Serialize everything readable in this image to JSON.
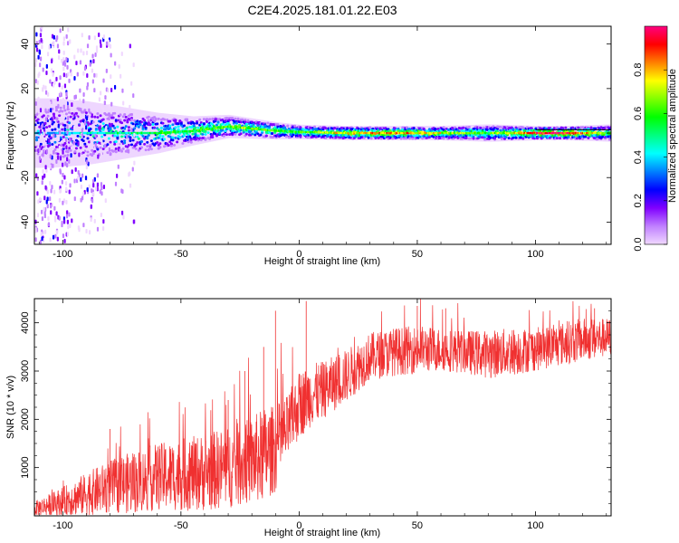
{
  "title": "C2E4.2025.181.01.22.E03",
  "chart_data": [
    {
      "type": "heatmap",
      "xlabel": "Height of straight line (km)",
      "ylabel": "Frequency (Hz)",
      "xlim": [
        -112,
        132
      ],
      "ylim": [
        -50,
        48
      ],
      "xticks": [
        -100,
        -50,
        0,
        50,
        100
      ],
      "yticks": [
        -40,
        -20,
        0,
        20,
        40
      ],
      "colorbar": {
        "label": "Normalized spectral amplitude",
        "range": [
          0,
          1
        ],
        "ticks": [
          "0.0",
          "0.2",
          "0.4",
          "0.6",
          "0.8"
        ],
        "colors": [
          "#f0d8ff",
          "#c080ff",
          "#8000ff",
          "#0000ff",
          "#0080ff",
          "#00ffff",
          "#00ff80",
          "#00ff00",
          "#80ff00",
          "#ffff00",
          "#ff8000",
          "#ff0000",
          "#ff0080"
        ]
      },
      "ridge_line": {
        "x": [
          100,
          132
        ],
        "y": [
          1.5,
          1.5
        ]
      },
      "ridge": [
        {
          "x": -105,
          "center": 0,
          "halfwidth": 12,
          "amp": 0.35
        },
        {
          "x": -90,
          "center": 0,
          "halfwidth": 11,
          "amp": 0.45
        },
        {
          "x": -75,
          "center": 0,
          "halfwidth": 9,
          "amp": 0.5
        },
        {
          "x": -60,
          "center": 0,
          "halfwidth": 7,
          "amp": 0.55
        },
        {
          "x": -45,
          "center": 1,
          "halfwidth": 5,
          "amp": 0.6
        },
        {
          "x": -30,
          "center": 3,
          "halfwidth": 4,
          "amp": 0.62
        },
        {
          "x": -20,
          "center": 2,
          "halfwidth": 3.5,
          "amp": 0.65
        },
        {
          "x": -10,
          "center": 1,
          "halfwidth": 3,
          "amp": 0.6
        },
        {
          "x": 0,
          "center": 0.5,
          "halfwidth": 2.5,
          "amp": 0.6
        },
        {
          "x": 20,
          "center": 0,
          "halfwidth": 2.5,
          "amp": 0.75
        },
        {
          "x": 40,
          "center": 0,
          "halfwidth": 2.5,
          "amp": 0.85
        },
        {
          "x": 60,
          "center": 0,
          "halfwidth": 2.5,
          "amp": 0.7
        },
        {
          "x": 80,
          "center": 0,
          "halfwidth": 3,
          "amp": 0.6
        },
        {
          "x": 100,
          "center": 0,
          "halfwidth": 2.5,
          "amp": 0.9
        },
        {
          "x": 115,
          "center": 0,
          "halfwidth": 2.5,
          "amp": 0.95
        },
        {
          "x": 132,
          "center": 0,
          "halfwidth": 3,
          "amp": 0.55
        }
      ],
      "noise_regions": [
        {
          "x_from": -112,
          "x_to": -98,
          "y_from": -50,
          "y_to": 48,
          "density": 0.55
        },
        {
          "x_from": -98,
          "x_to": -80,
          "y_from": -45,
          "y_to": 45,
          "density": 0.3
        },
        {
          "x_from": -80,
          "x_to": -70,
          "y_from": -40,
          "y_to": 40,
          "density": 0.12
        }
      ]
    },
    {
      "type": "line",
      "xlabel": "Height of straight line (km)",
      "ylabel": "SNR (10 * v/v)",
      "xlim": [
        -112,
        132
      ],
      "ylim": [
        0,
        4500
      ],
      "xticks": [
        -100,
        -50,
        0,
        50,
        100
      ],
      "yticks": [
        1000,
        2000,
        3000,
        4000
      ],
      "series": [
        {
          "color": "#f03030",
          "envelope": {
            "x": [
              -112,
              -100,
              -90,
              -80,
              -70,
              -60,
              -50,
              -40,
              -30,
              -20,
              -15,
              -10,
              -5,
              0,
              5,
              10,
              20,
              30,
              40,
              50,
              60,
              70,
              80,
              90,
              100,
              110,
              120,
              132
            ],
            "center": [
              150,
              300,
              450,
              600,
              700,
              800,
              850,
              900,
              1000,
              1150,
              1250,
              1400,
              1800,
              2300,
              2500,
              2600,
              2900,
              3300,
              3400,
              3450,
              3450,
              3400,
              3350,
              3400,
              3450,
              3550,
              3650,
              3700
            ],
            "spread": [
              150,
              300,
              450,
              550,
              650,
              700,
              750,
              800,
              850,
              900,
              1000,
              900,
              700,
              700,
              650,
              600,
              550,
              500,
              500,
              500,
              450,
              450,
              500,
              500,
              450,
              450,
              450,
              400
            ]
          },
          "spikes": [
            {
              "x": -15,
              "y": 3500
            },
            {
              "x": -10,
              "y": 4250
            },
            {
              "x": 3,
              "y": 4450
            },
            {
              "x": -23,
              "y": 3000
            },
            {
              "x": -30,
              "y": 2400
            },
            {
              "x": 50,
              "y": 4350
            },
            {
              "x": 62,
              "y": 4300
            },
            {
              "x": 125,
              "y": 4300
            },
            {
              "x": -80,
              "y": 1800
            }
          ]
        }
      ]
    }
  ]
}
